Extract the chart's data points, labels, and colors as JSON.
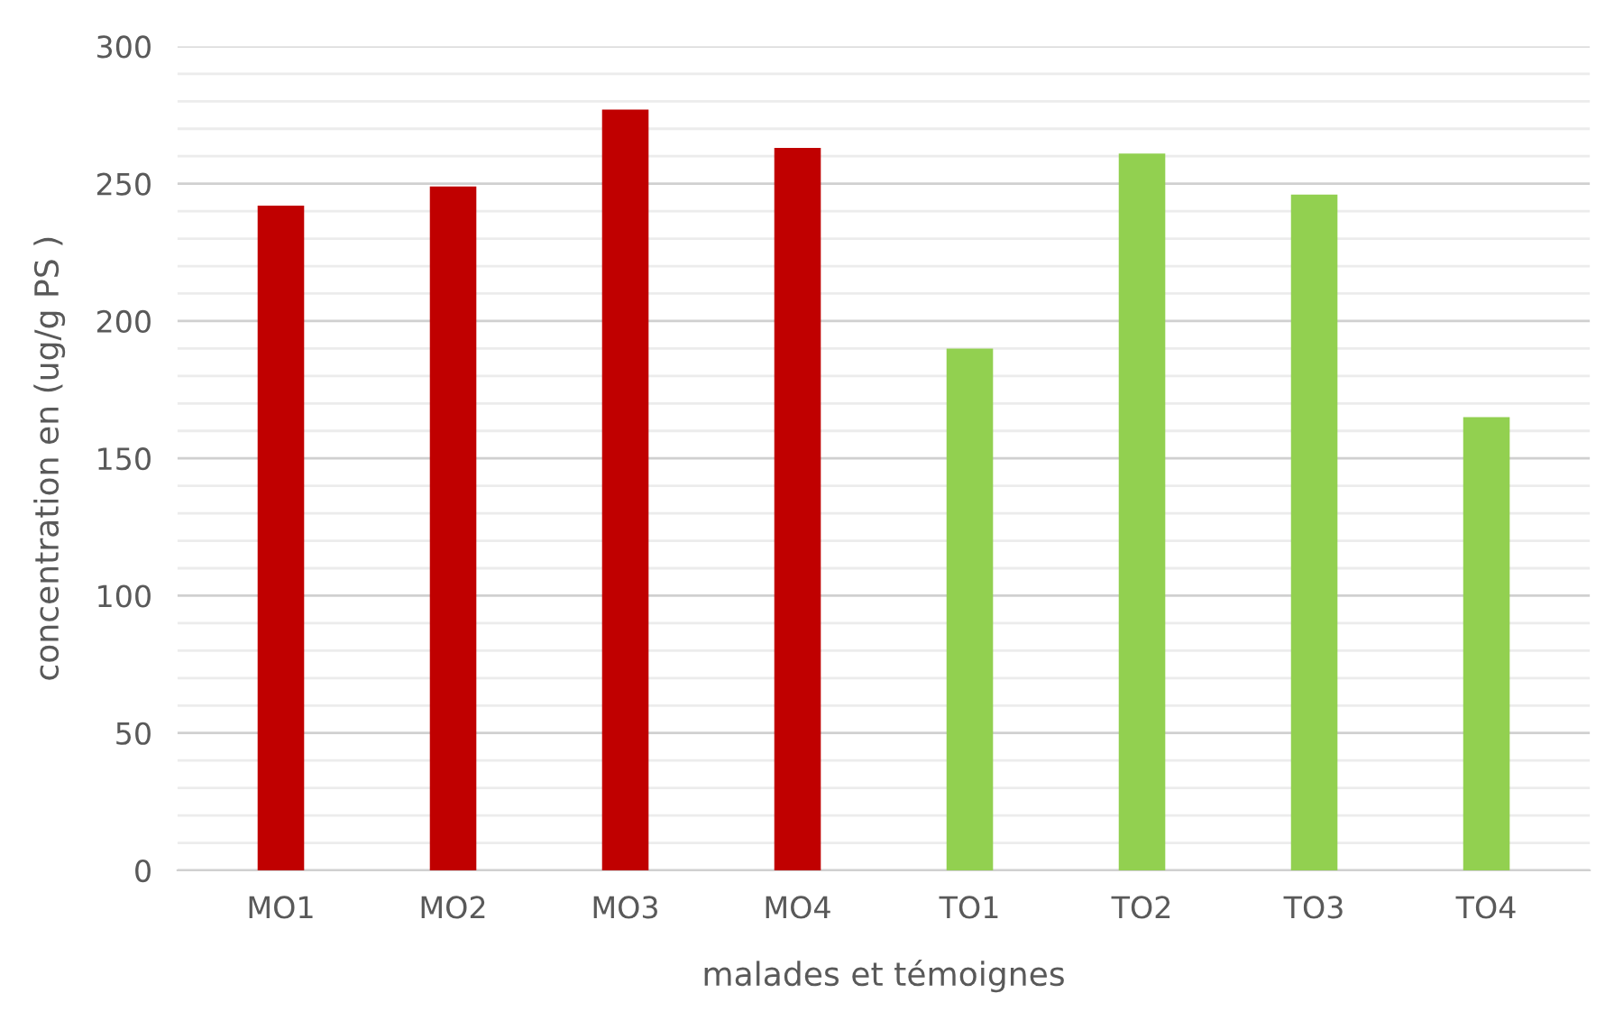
{
  "chart_data": {
    "type": "bar",
    "xlabel": "malades et témoignes",
    "ylabel": "concentration en (ug/g PS )",
    "categories": [
      "MO1",
      "MO2",
      "MO3",
      "MO4",
      "TO1",
      "TO2",
      "TO3",
      "TO4"
    ],
    "values": [
      242,
      249,
      277,
      263,
      190,
      261,
      246,
      165
    ],
    "colors": [
      "#c00000",
      "#c00000",
      "#c00000",
      "#c00000",
      "#92d050",
      "#92d050",
      "#92d050",
      "#92d050"
    ],
    "ylim": [
      0,
      300
    ],
    "yticks": [
      0,
      {
        "value": 10,
        "label": null
      },
      {
        "value": 20,
        "label": null
      },
      {
        "value": 30,
        "label": null
      },
      {
        "value": 40,
        "label": null
      },
      50,
      {
        "value": 60,
        "label": null
      },
      {
        "value": 70,
        "label": null
      },
      {
        "value": 80,
        "label": null
      },
      {
        "value": 90,
        "label": null
      },
      100,
      {
        "value": 110,
        "label": null
      },
      {
        "value": 120,
        "label": null
      },
      {
        "value": 130,
        "label": null
      },
      {
        "value": 140,
        "label": null
      },
      150,
      {
        "value": 160,
        "label": null
      },
      {
        "value": 170,
        "label": null
      },
      {
        "value": 180,
        "label": null
      },
      {
        "value": 190,
        "label": null
      },
      200,
      {
        "value": 210,
        "label": null
      },
      {
        "value": 220,
        "label": null
      },
      {
        "value": 230,
        "label": null
      },
      {
        "value": 240,
        "label": null
      },
      250,
      {
        "value": 260,
        "label": null
      },
      {
        "value": 270,
        "label": null
      },
      {
        "value": 280,
        "label": null
      },
      {
        "value": 290,
        "label": null
      },
      300
    ],
    "grid": "y"
  }
}
